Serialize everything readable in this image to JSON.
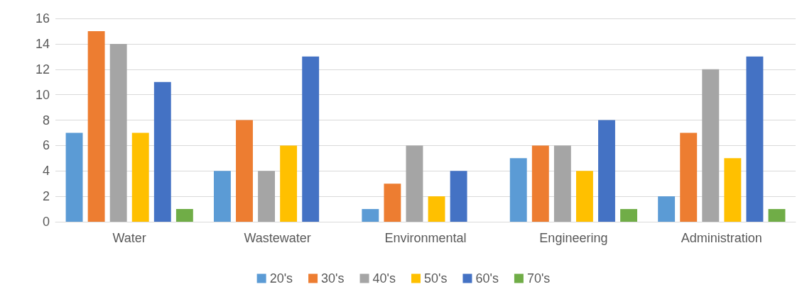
{
  "chart_data": {
    "type": "bar",
    "categories": [
      "Water",
      "Wastewater",
      "Environmental",
      "Engineering",
      "Administration"
    ],
    "series": [
      {
        "name": "20's",
        "color": "#5b9bd5",
        "values": [
          7,
          4,
          1,
          5,
          2
        ]
      },
      {
        "name": "30's",
        "color": "#ed7d31",
        "values": [
          15,
          8,
          3,
          6,
          7
        ]
      },
      {
        "name": "40's",
        "color": "#a5a5a5",
        "values": [
          14,
          4,
          6,
          6,
          12
        ]
      },
      {
        "name": "50's",
        "color": "#ffc000",
        "values": [
          7,
          6,
          2,
          4,
          5
        ]
      },
      {
        "name": "60's",
        "color": "#4472c4",
        "values": [
          11,
          13,
          4,
          8,
          13
        ]
      },
      {
        "name": "70's",
        "color": "#70ad47",
        "values": [
          1,
          null,
          null,
          1,
          1
        ]
      }
    ],
    "ylim": [
      0,
      16
    ],
    "yticks": [
      0,
      2,
      4,
      6,
      8,
      10,
      12,
      14,
      16
    ],
    "grid": "y",
    "legend": "bottom"
  }
}
